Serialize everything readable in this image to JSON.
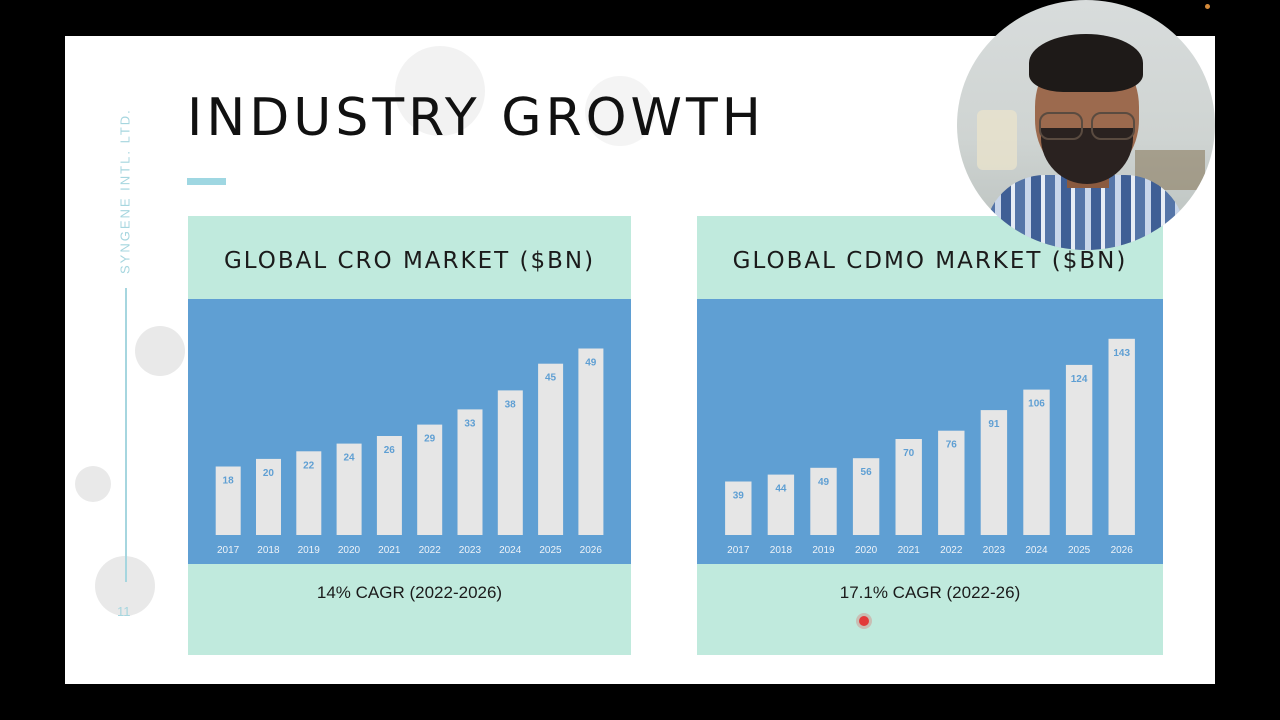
{
  "slide": {
    "title": "INDUSTRY GROWTH",
    "side_text": "SYNGENE INTL. LTD.",
    "slide_number": "11",
    "accent_color": "#9fd7e2",
    "panel_color": "#c0eadd",
    "plot_color": "#5f9fd3",
    "bar_color": "#e6e6e6"
  },
  "chart_data": [
    {
      "type": "bar",
      "title": "GLOBAL CRO MARKET ($BN)",
      "categories": [
        "2017",
        "2018",
        "2019",
        "2020",
        "2021",
        "2022",
        "2023",
        "2024",
        "2025",
        "2026"
      ],
      "values": [
        18,
        20,
        22,
        24,
        26,
        29,
        33,
        38,
        45,
        49
      ],
      "ylim": [
        0,
        62
      ],
      "grid": false,
      "legend": "none",
      "footnote": "14% CAGR (2022-2026)"
    },
    {
      "type": "bar",
      "title": "GLOBAL CDMO MARKET ($BN)",
      "categories": [
        "2017",
        "2018",
        "2019",
        "2020",
        "2021",
        "2022",
        "2023",
        "2024",
        "2025",
        "2026"
      ],
      "values": [
        39,
        44,
        49,
        56,
        70,
        76,
        91,
        106,
        124,
        143
      ],
      "ylim": [
        0,
        172
      ],
      "grid": false,
      "legend": "none",
      "footnote": "17.1% CAGR (2022-26)"
    }
  ]
}
